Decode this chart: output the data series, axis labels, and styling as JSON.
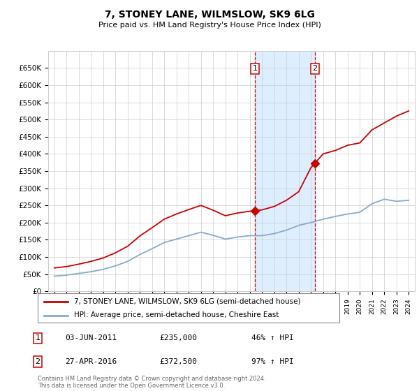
{
  "title": "7, STONEY LANE, WILMSLOW, SK9 6LG",
  "subtitle": "Price paid vs. HM Land Registry's House Price Index (HPI)",
  "sale1_date": "03-JUN-2011",
  "sale1_price": 235000,
  "sale1_pct": "46%",
  "sale1_label": "1",
  "sale1_year": 2011.42,
  "sale2_date": "27-APR-2016",
  "sale2_price": 372500,
  "sale2_pct": "97%",
  "sale2_label": "2",
  "sale2_year": 2016.32,
  "legend_line1": "7, STONEY LANE, WILMSLOW, SK9 6LG (semi-detached house)",
  "legend_line2": "HPI: Average price, semi-detached house, Cheshire East",
  "footnote": "Contains HM Land Registry data © Crown copyright and database right 2024.\nThis data is licensed under the Open Government Licence v3.0.",
  "red_color": "#cc0000",
  "blue_color": "#88aacc",
  "highlight_bg": "#ddeeff",
  "ylim_min": 0,
  "ylim_max": 700000,
  "yticks": [
    0,
    50000,
    100000,
    150000,
    200000,
    250000,
    300000,
    350000,
    400000,
    450000,
    500000,
    550000,
    600000,
    650000
  ],
  "ytick_labels": [
    "£0",
    "£50K",
    "£100K",
    "£150K",
    "£200K",
    "£250K",
    "£300K",
    "£350K",
    "£400K",
    "£450K",
    "£500K",
    "£550K",
    "£600K",
    "£650K"
  ],
  "hpi_years": [
    1995,
    1996,
    1997,
    1998,
    1999,
    2000,
    2001,
    2002,
    2003,
    2004,
    2005,
    2006,
    2007,
    2008,
    2009,
    2010,
    2011,
    2012,
    2013,
    2014,
    2015,
    2016,
    2017,
    2018,
    2019,
    2020,
    2021,
    2022,
    2023,
    2024
  ],
  "hpi_values": [
    44000,
    47000,
    52000,
    57000,
    64000,
    74000,
    87000,
    107000,
    124000,
    142000,
    152000,
    162000,
    172000,
    163000,
    152000,
    158000,
    162000,
    162000,
    168000,
    178000,
    192000,
    200000,
    210000,
    218000,
    225000,
    230000,
    255000,
    268000,
    262000,
    265000
  ],
  "red_years": [
    1995,
    1996,
    1997,
    1998,
    1999,
    2000,
    2001,
    2002,
    2003,
    2004,
    2005,
    2006,
    2007,
    2008,
    2009,
    2010,
    2011,
    2011.42,
    2012,
    2013,
    2014,
    2015,
    2016,
    2016.32,
    2017,
    2018,
    2019,
    2020,
    2021,
    2022,
    2023,
    2024
  ],
  "red_values": [
    68000,
    72000,
    79000,
    87000,
    97000,
    112000,
    131000,
    161000,
    185000,
    210000,
    225000,
    238000,
    250000,
    236000,
    220000,
    228000,
    233000,
    235000,
    237000,
    247000,
    265000,
    290000,
    360000,
    372500,
    400000,
    410000,
    425000,
    432000,
    470000,
    490000,
    510000,
    525000
  ]
}
